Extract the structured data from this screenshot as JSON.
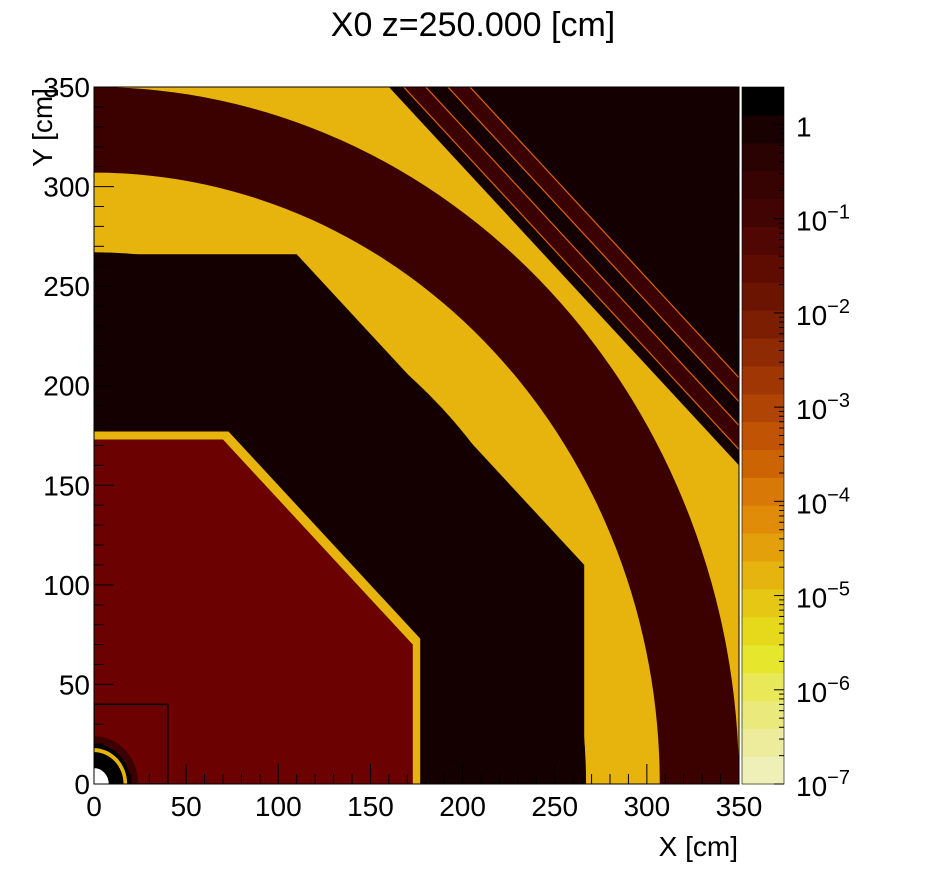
{
  "chart_data": {
    "type": "heatmap",
    "title": "X0 z=250.000 [cm]",
    "xlabel": "X [cm]",
    "ylabel": "Y [cm]",
    "xlim": [
      0,
      350
    ],
    "ylim": [
      0,
      350
    ],
    "x_ticks": [
      "0",
      "50",
      "100",
      "150",
      "200",
      "250",
      "300",
      "350"
    ],
    "y_ticks": [
      "0",
      "50",
      "100",
      "150",
      "200",
      "250",
      "300",
      "350"
    ],
    "colorbar": {
      "scale": "log",
      "range": [
        1e-07,
        2.5
      ],
      "ticks": [
        {
          "base": "1",
          "exp": ""
        },
        {
          "base": "10",
          "exp": "−1"
        },
        {
          "base": "10",
          "exp": "−2"
        },
        {
          "base": "10",
          "exp": "−3"
        },
        {
          "base": "10",
          "exp": "−4"
        },
        {
          "base": "10",
          "exp": "−5"
        },
        {
          "base": "10",
          "exp": "−6"
        },
        {
          "base": "10",
          "exp": "−7"
        }
      ],
      "tick_exponents": [
        0,
        -1,
        -2,
        -3,
        -4,
        -5,
        -6,
        -7
      ],
      "colors": [
        "#efefb8",
        "#ecec9c",
        "#eaea7c",
        "#e8e858",
        "#e6e62c",
        "#e6d91c",
        "#e6c814",
        "#e6b40e",
        "#e4a00a",
        "#e08c08",
        "#d87806",
        "#cc6404",
        "#c05404",
        "#b04404",
        "#a03604",
        "#8e2a04",
        "#7c1e02",
        "#6c1402",
        "#5e0c02",
        "#500602",
        "#420402",
        "#360202",
        "#2a0202",
        "#1a0101",
        "#000000"
      ]
    },
    "regions": [
      {
        "name": "inner-octagon",
        "value": 0.04,
        "color": "#6b0101"
      },
      {
        "name": "thin-layer-1",
        "value": 2e-05,
        "color": "#e6b40c"
      },
      {
        "name": "band-2",
        "value": 0.5,
        "color": "#140000"
      },
      {
        "name": "layer-3",
        "value": 2e-05,
        "color": "#e6b40c"
      },
      {
        "name": "band-4",
        "value": 0.2,
        "color": "#3b0000"
      },
      {
        "name": "layer-5",
        "value": 2e-05,
        "color": "#e6b40c"
      },
      {
        "name": "outer-striped",
        "value": 0.5,
        "color": "#140000"
      }
    ]
  }
}
